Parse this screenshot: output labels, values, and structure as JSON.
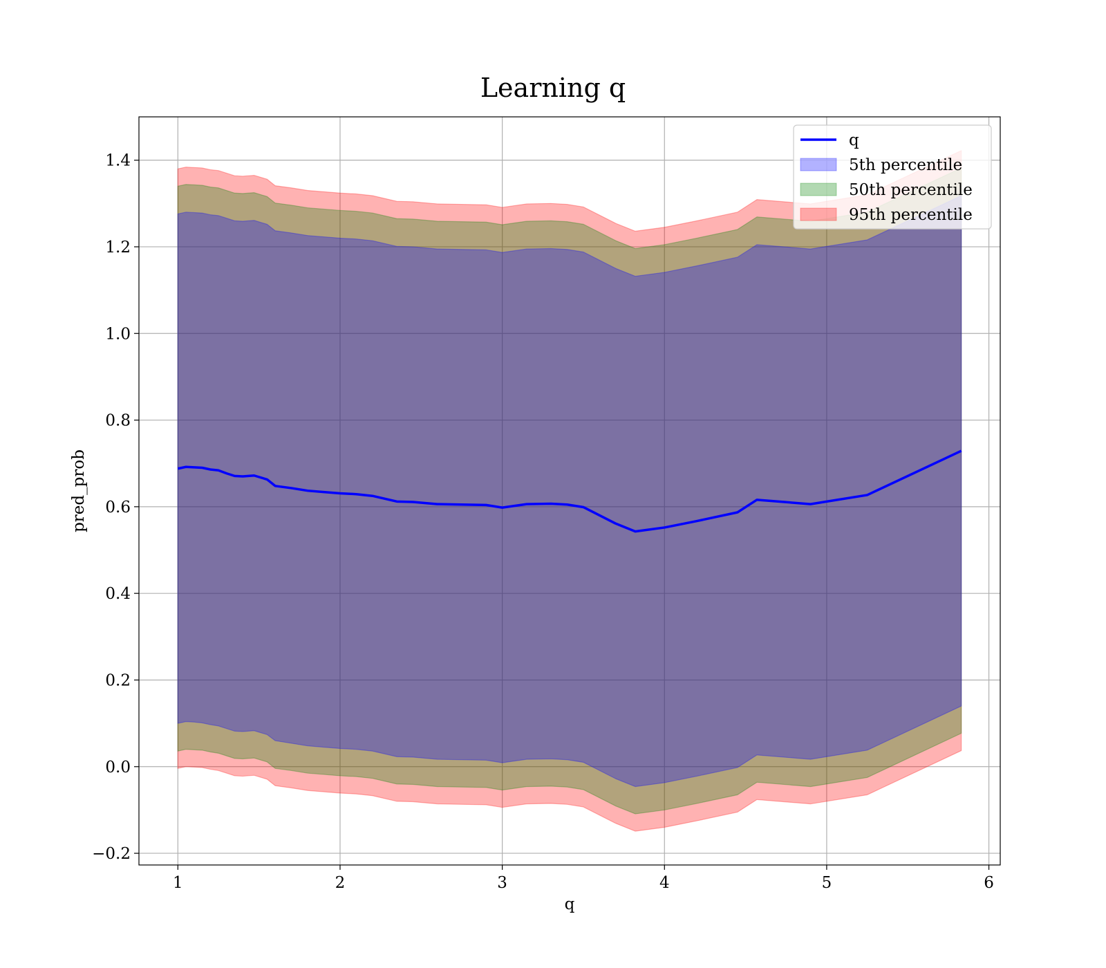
{
  "chart_data": {
    "type": "area",
    "title": "Learning q",
    "xlabel": "q",
    "ylabel": "pred_prob",
    "xlim": [
      0.76,
      6.07
    ],
    "ylim": [
      -0.227,
      1.5
    ],
    "xticks": [
      1,
      2,
      3,
      4,
      5,
      6
    ],
    "xtick_labels": [
      "1",
      "2",
      "3",
      "4",
      "5",
      "6"
    ],
    "yticks": [
      -0.2,
      0.0,
      0.2,
      0.4,
      0.6,
      0.8,
      1.0,
      1.2,
      1.4
    ],
    "ytick_labels": [
      "−0.2",
      "0.0",
      "0.2",
      "0.4",
      "0.6",
      "0.8",
      "1.0",
      "1.2",
      "1.4"
    ],
    "grid": true,
    "legend_position": "top-right",
    "x": [
      1.0,
      1.05,
      1.1,
      1.15,
      1.2,
      1.25,
      1.3,
      1.35,
      1.4,
      1.47,
      1.55,
      1.6,
      1.7,
      1.8,
      1.9,
      2.0,
      2.1,
      2.2,
      2.35,
      2.45,
      2.6,
      2.75,
      2.9,
      3.0,
      3.15,
      3.3,
      3.4,
      3.5,
      3.7,
      3.82,
      4.0,
      4.2,
      4.45,
      4.57,
      4.9,
      5.25,
      5.83
    ],
    "series": [
      {
        "name": "q",
        "kind": "line",
        "color": "#0000ff",
        "values": [
          0.688,
          0.692,
          0.691,
          0.69,
          0.686,
          0.684,
          0.677,
          0.671,
          0.67,
          0.672,
          0.663,
          0.648,
          0.643,
          0.637,
          0.634,
          0.631,
          0.629,
          0.625,
          0.612,
          0.611,
          0.606,
          0.605,
          0.604,
          0.598,
          0.606,
          0.607,
          0.605,
          0.599,
          0.561,
          0.543,
          0.552,
          0.567,
          0.587,
          0.616,
          0.606,
          0.627,
          0.729
        ]
      },
      {
        "name": "5th percentile",
        "kind": "band",
        "color": "#0000ff",
        "lower": [
          0.1,
          0.104,
          0.103,
          0.101,
          0.097,
          0.094,
          0.088,
          0.082,
          0.081,
          0.083,
          0.074,
          0.06,
          0.054,
          0.048,
          0.045,
          0.042,
          0.04,
          0.036,
          0.023,
          0.022,
          0.017,
          0.016,
          0.015,
          0.009,
          0.017,
          0.018,
          0.016,
          0.01,
          -0.028,
          -0.046,
          -0.037,
          -0.022,
          -0.002,
          0.027,
          0.017,
          0.038,
          0.14
        ],
        "upper": [
          1.276,
          1.28,
          1.279,
          1.278,
          1.274,
          1.272,
          1.266,
          1.26,
          1.259,
          1.261,
          1.252,
          1.237,
          1.232,
          1.226,
          1.223,
          1.22,
          1.218,
          1.214,
          1.201,
          1.2,
          1.195,
          1.194,
          1.193,
          1.187,
          1.195,
          1.196,
          1.194,
          1.188,
          1.15,
          1.132,
          1.141,
          1.156,
          1.176,
          1.205,
          1.195,
          1.216,
          1.318
        ]
      },
      {
        "name": "50th percentile",
        "kind": "band",
        "color": "#008000",
        "lower": [
          0.036,
          0.04,
          0.039,
          0.038,
          0.034,
          0.031,
          0.025,
          0.019,
          0.018,
          0.02,
          0.011,
          -0.004,
          -0.009,
          -0.015,
          -0.018,
          -0.021,
          -0.023,
          -0.027,
          -0.04,
          -0.041,
          -0.046,
          -0.047,
          -0.048,
          -0.054,
          -0.046,
          -0.045,
          -0.047,
          -0.053,
          -0.091,
          -0.109,
          -0.1,
          -0.085,
          -0.065,
          -0.036,
          -0.046,
          -0.025,
          0.077
        ],
        "upper": [
          1.34,
          1.344,
          1.343,
          1.342,
          1.338,
          1.336,
          1.33,
          1.324,
          1.323,
          1.325,
          1.316,
          1.301,
          1.296,
          1.29,
          1.287,
          1.284,
          1.282,
          1.278,
          1.265,
          1.264,
          1.259,
          1.258,
          1.257,
          1.251,
          1.259,
          1.26,
          1.258,
          1.252,
          1.214,
          1.196,
          1.205,
          1.22,
          1.24,
          1.269,
          1.259,
          1.28,
          1.382
        ]
      },
      {
        "name": "95th percentile",
        "kind": "band",
        "color": "#ff0000",
        "lower": [
          -0.004,
          0.0,
          -0.001,
          -0.002,
          -0.006,
          -0.009,
          -0.015,
          -0.021,
          -0.022,
          -0.02,
          -0.029,
          -0.044,
          -0.049,
          -0.055,
          -0.058,
          -0.061,
          -0.063,
          -0.067,
          -0.08,
          -0.081,
          -0.086,
          -0.087,
          -0.088,
          -0.094,
          -0.086,
          -0.085,
          -0.087,
          -0.093,
          -0.131,
          -0.149,
          -0.14,
          -0.125,
          -0.105,
          -0.076,
          -0.086,
          -0.065,
          0.037
        ],
        "upper": [
          1.38,
          1.384,
          1.383,
          1.382,
          1.378,
          1.376,
          1.37,
          1.364,
          1.363,
          1.365,
          1.356,
          1.341,
          1.336,
          1.33,
          1.327,
          1.324,
          1.322,
          1.318,
          1.305,
          1.304,
          1.299,
          1.298,
          1.297,
          1.291,
          1.299,
          1.3,
          1.298,
          1.292,
          1.254,
          1.236,
          1.245,
          1.26,
          1.28,
          1.309,
          1.299,
          1.32,
          1.422
        ]
      }
    ]
  }
}
